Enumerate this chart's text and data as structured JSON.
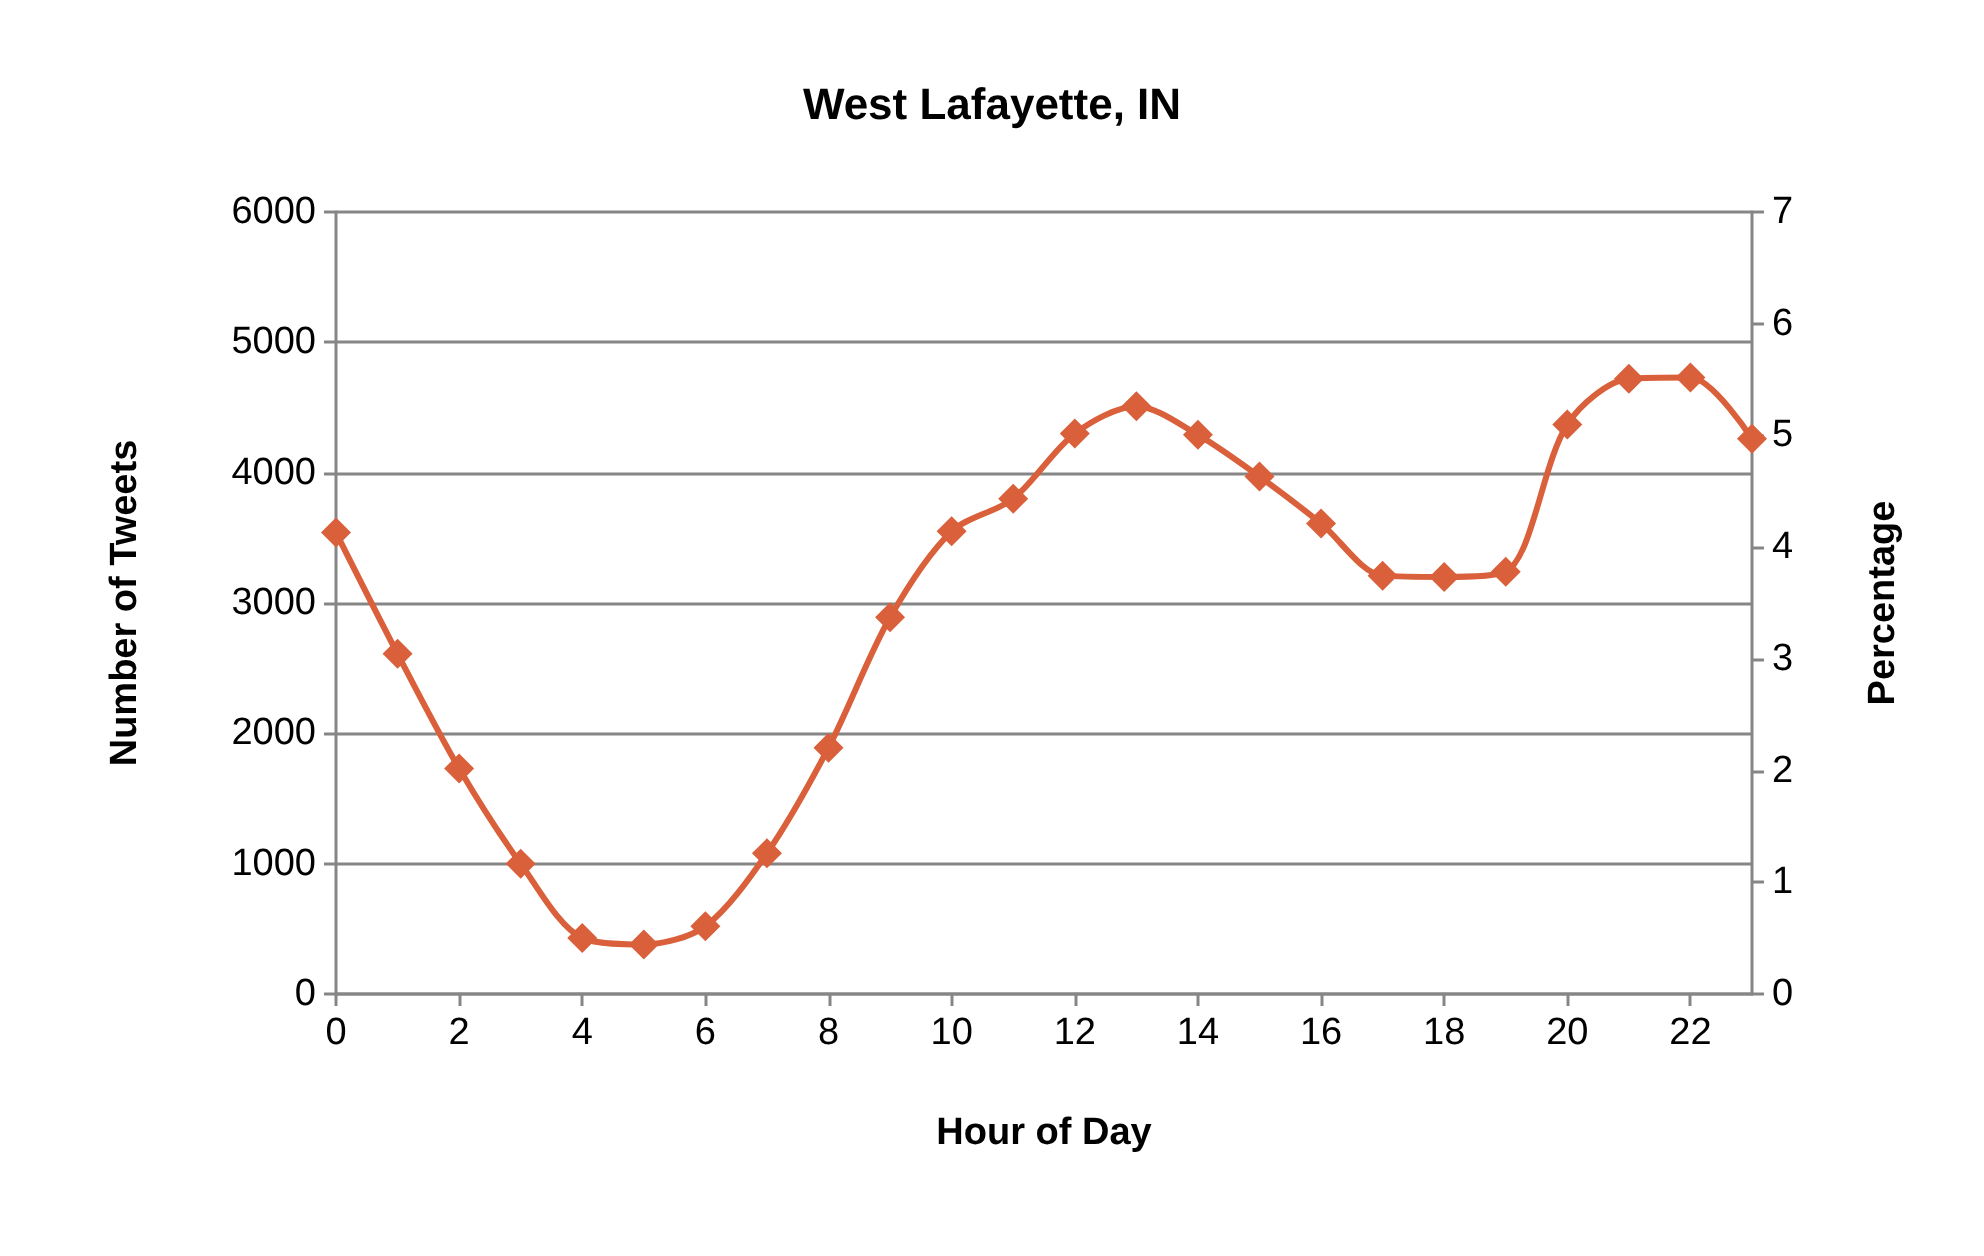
{
  "chart_data": {
    "type": "line",
    "title": "West Lafayette, IN",
    "xlabel": "Hour of Day",
    "ylabel": "Number of Tweets",
    "y2label": "Percentage",
    "x": [
      0,
      1,
      2,
      3,
      4,
      5,
      6,
      7,
      8,
      9,
      10,
      11,
      12,
      13,
      14,
      15,
      16,
      17,
      18,
      19,
      20,
      21,
      22,
      23
    ],
    "series": [
      {
        "color": "#d9603b",
        "values": [
          3540,
          2610,
          1730,
          1000,
          430,
          380,
          520,
          1080,
          1890,
          2890,
          3550,
          3800,
          4300,
          4510,
          4290,
          3970,
          3610,
          3210,
          3200,
          3240,
          4370,
          4720,
          4730,
          4260
        ]
      }
    ],
    "xlim": [
      0,
      23
    ],
    "xticks": [
      0,
      2,
      4,
      6,
      8,
      10,
      12,
      14,
      16,
      18,
      20,
      22
    ],
    "ylim": [
      0,
      6000
    ],
    "yticks": [
      0,
      1000,
      2000,
      3000,
      4000,
      5000,
      6000
    ],
    "y2lim": [
      0,
      7
    ],
    "y2ticks": [
      0,
      1,
      2,
      3,
      4,
      5,
      6,
      7
    ],
    "grid": "y",
    "marker": "diamond",
    "line_style": "solid"
  }
}
